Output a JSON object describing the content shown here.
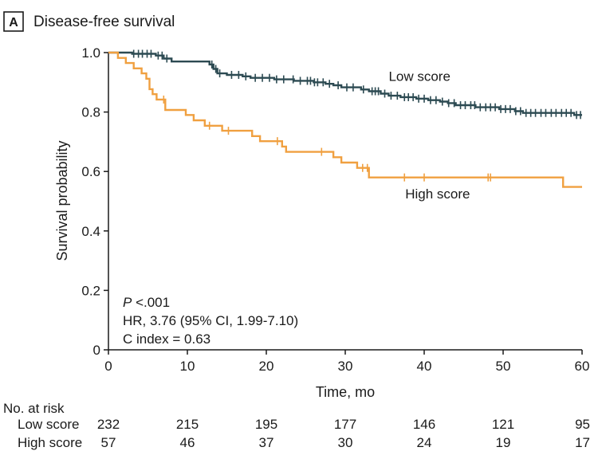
{
  "panel": {
    "letter": "A",
    "title": "Disease-free survival"
  },
  "chart_data": {
    "type": "line",
    "title": "Disease-free survival",
    "xlabel": "Time, mo",
    "ylabel": "Survival probability",
    "xlim": [
      0,
      60
    ],
    "ylim": [
      0,
      1.0
    ],
    "xticks": [
      0,
      10,
      20,
      30,
      40,
      50,
      60
    ],
    "xtick_labels": [
      "0",
      "10",
      "20",
      "30",
      "40",
      "50",
      "60"
    ],
    "yticks": [
      0,
      0.2,
      0.4,
      0.6,
      0.8,
      1.0
    ],
    "ytick_labels": [
      "0",
      "0.2",
      "0.4",
      "0.6",
      "0.8",
      "1.0"
    ],
    "grid": false,
    "series": [
      {
        "name": "Low score",
        "color": "#2c4a52",
        "steps": [
          [
            0,
            1.0
          ],
          [
            3,
            0.996
          ],
          [
            6,
            0.99
          ],
          [
            7,
            0.98
          ],
          [
            8,
            0.97
          ],
          [
            12.8,
            0.96
          ],
          [
            13.3,
            0.945
          ],
          [
            13.8,
            0.93
          ],
          [
            15,
            0.925
          ],
          [
            17,
            0.92
          ],
          [
            18,
            0.915
          ],
          [
            21,
            0.91
          ],
          [
            23.5,
            0.905
          ],
          [
            26,
            0.9
          ],
          [
            27.5,
            0.895
          ],
          [
            28.5,
            0.89
          ],
          [
            29.5,
            0.883
          ],
          [
            32,
            0.876
          ],
          [
            33,
            0.87
          ],
          [
            34.5,
            0.862
          ],
          [
            35.5,
            0.855
          ],
          [
            37,
            0.85
          ],
          [
            39,
            0.845
          ],
          [
            40.5,
            0.84
          ],
          [
            42,
            0.835
          ],
          [
            43,
            0.83
          ],
          [
            44,
            0.823
          ],
          [
            46.5,
            0.816
          ],
          [
            49.5,
            0.81
          ],
          [
            51.5,
            0.803
          ],
          [
            52.5,
            0.797
          ],
          [
            59,
            0.79
          ],
          [
            60,
            0.79
          ]
        ],
        "censor_times": [
          3.2,
          3.8,
          4.3,
          4.9,
          5.4,
          6.3,
          6.8,
          7.4,
          13.1,
          13.6,
          14.1,
          15.6,
          16.5,
          17.4,
          18.6,
          19.5,
          20.4,
          21.3,
          22.2,
          23.4,
          24.3,
          25.2,
          25.6,
          26.1,
          26.5,
          27.2,
          28.0,
          29.1,
          30.2,
          31.0,
          32.3,
          33.4,
          33.8,
          34.2,
          35.0,
          35.8,
          36.6,
          37.5,
          38.0,
          38.6,
          39.3,
          40.0,
          40.8,
          41.5,
          42.3,
          43.1,
          43.8,
          44.6,
          45.2,
          45.9,
          46.4,
          47.1,
          47.8,
          48.4,
          49.0,
          49.7,
          50.3,
          50.9,
          51.6,
          52.2,
          52.9,
          53.5,
          54.1,
          54.8,
          55.4,
          56.1,
          56.7,
          57.4,
          58.0,
          58.6,
          59.3,
          59.8
        ]
      },
      {
        "name": "High score",
        "color": "#f0a040",
        "steps": [
          [
            0,
            1.0
          ],
          [
            1.2,
            0.982
          ],
          [
            2.2,
            0.965
          ],
          [
            3.2,
            0.947
          ],
          [
            4.2,
            0.93
          ],
          [
            4.8,
            0.912
          ],
          [
            5.2,
            0.877
          ],
          [
            5.6,
            0.86
          ],
          [
            6.1,
            0.842
          ],
          [
            7.2,
            0.807
          ],
          [
            9.8,
            0.79
          ],
          [
            10.8,
            0.772
          ],
          [
            12.2,
            0.754
          ],
          [
            14.4,
            0.737
          ],
          [
            18.2,
            0.719
          ],
          [
            19.2,
            0.702
          ],
          [
            22.0,
            0.684
          ],
          [
            22.5,
            0.666
          ],
          [
            28.5,
            0.648
          ],
          [
            29.5,
            0.63
          ],
          [
            31.5,
            0.612
          ],
          [
            33.0,
            0.58
          ],
          [
            57.5,
            0.58
          ],
          [
            57.6,
            0.548
          ],
          [
            60,
            0.548
          ]
        ],
        "censor_times": [
          7.0,
          12.8,
          15.2,
          21.4,
          27.0,
          32.2,
          32.8,
          37.5,
          40.0,
          48.1,
          48.4
        ]
      }
    ],
    "series_labels": [
      {
        "text": "Low score",
        "series": "Low score",
        "x": 35.5,
        "y": 0.905
      },
      {
        "text": "High score",
        "series": "High score",
        "x": 37.6,
        "y": 0.51
      }
    ],
    "annotations": [
      {
        "italic": "P",
        "rest": " <.001",
        "text": "P <.001"
      },
      {
        "text": "HR, 3.76 (95% CI, 1.99-7.10)"
      },
      {
        "text": "C index = 0.63"
      }
    ]
  },
  "risk_table": {
    "header": "No. at risk",
    "times": [
      0,
      10,
      20,
      30,
      40,
      50,
      60
    ],
    "rows": [
      {
        "label": "Low score",
        "values": [
          "232",
          "215",
          "195",
          "177",
          "146",
          "121",
          "95"
        ]
      },
      {
        "label": "High score",
        "values": [
          "57",
          "46",
          "37",
          "30",
          "24",
          "19",
          "17"
        ]
      }
    ]
  }
}
